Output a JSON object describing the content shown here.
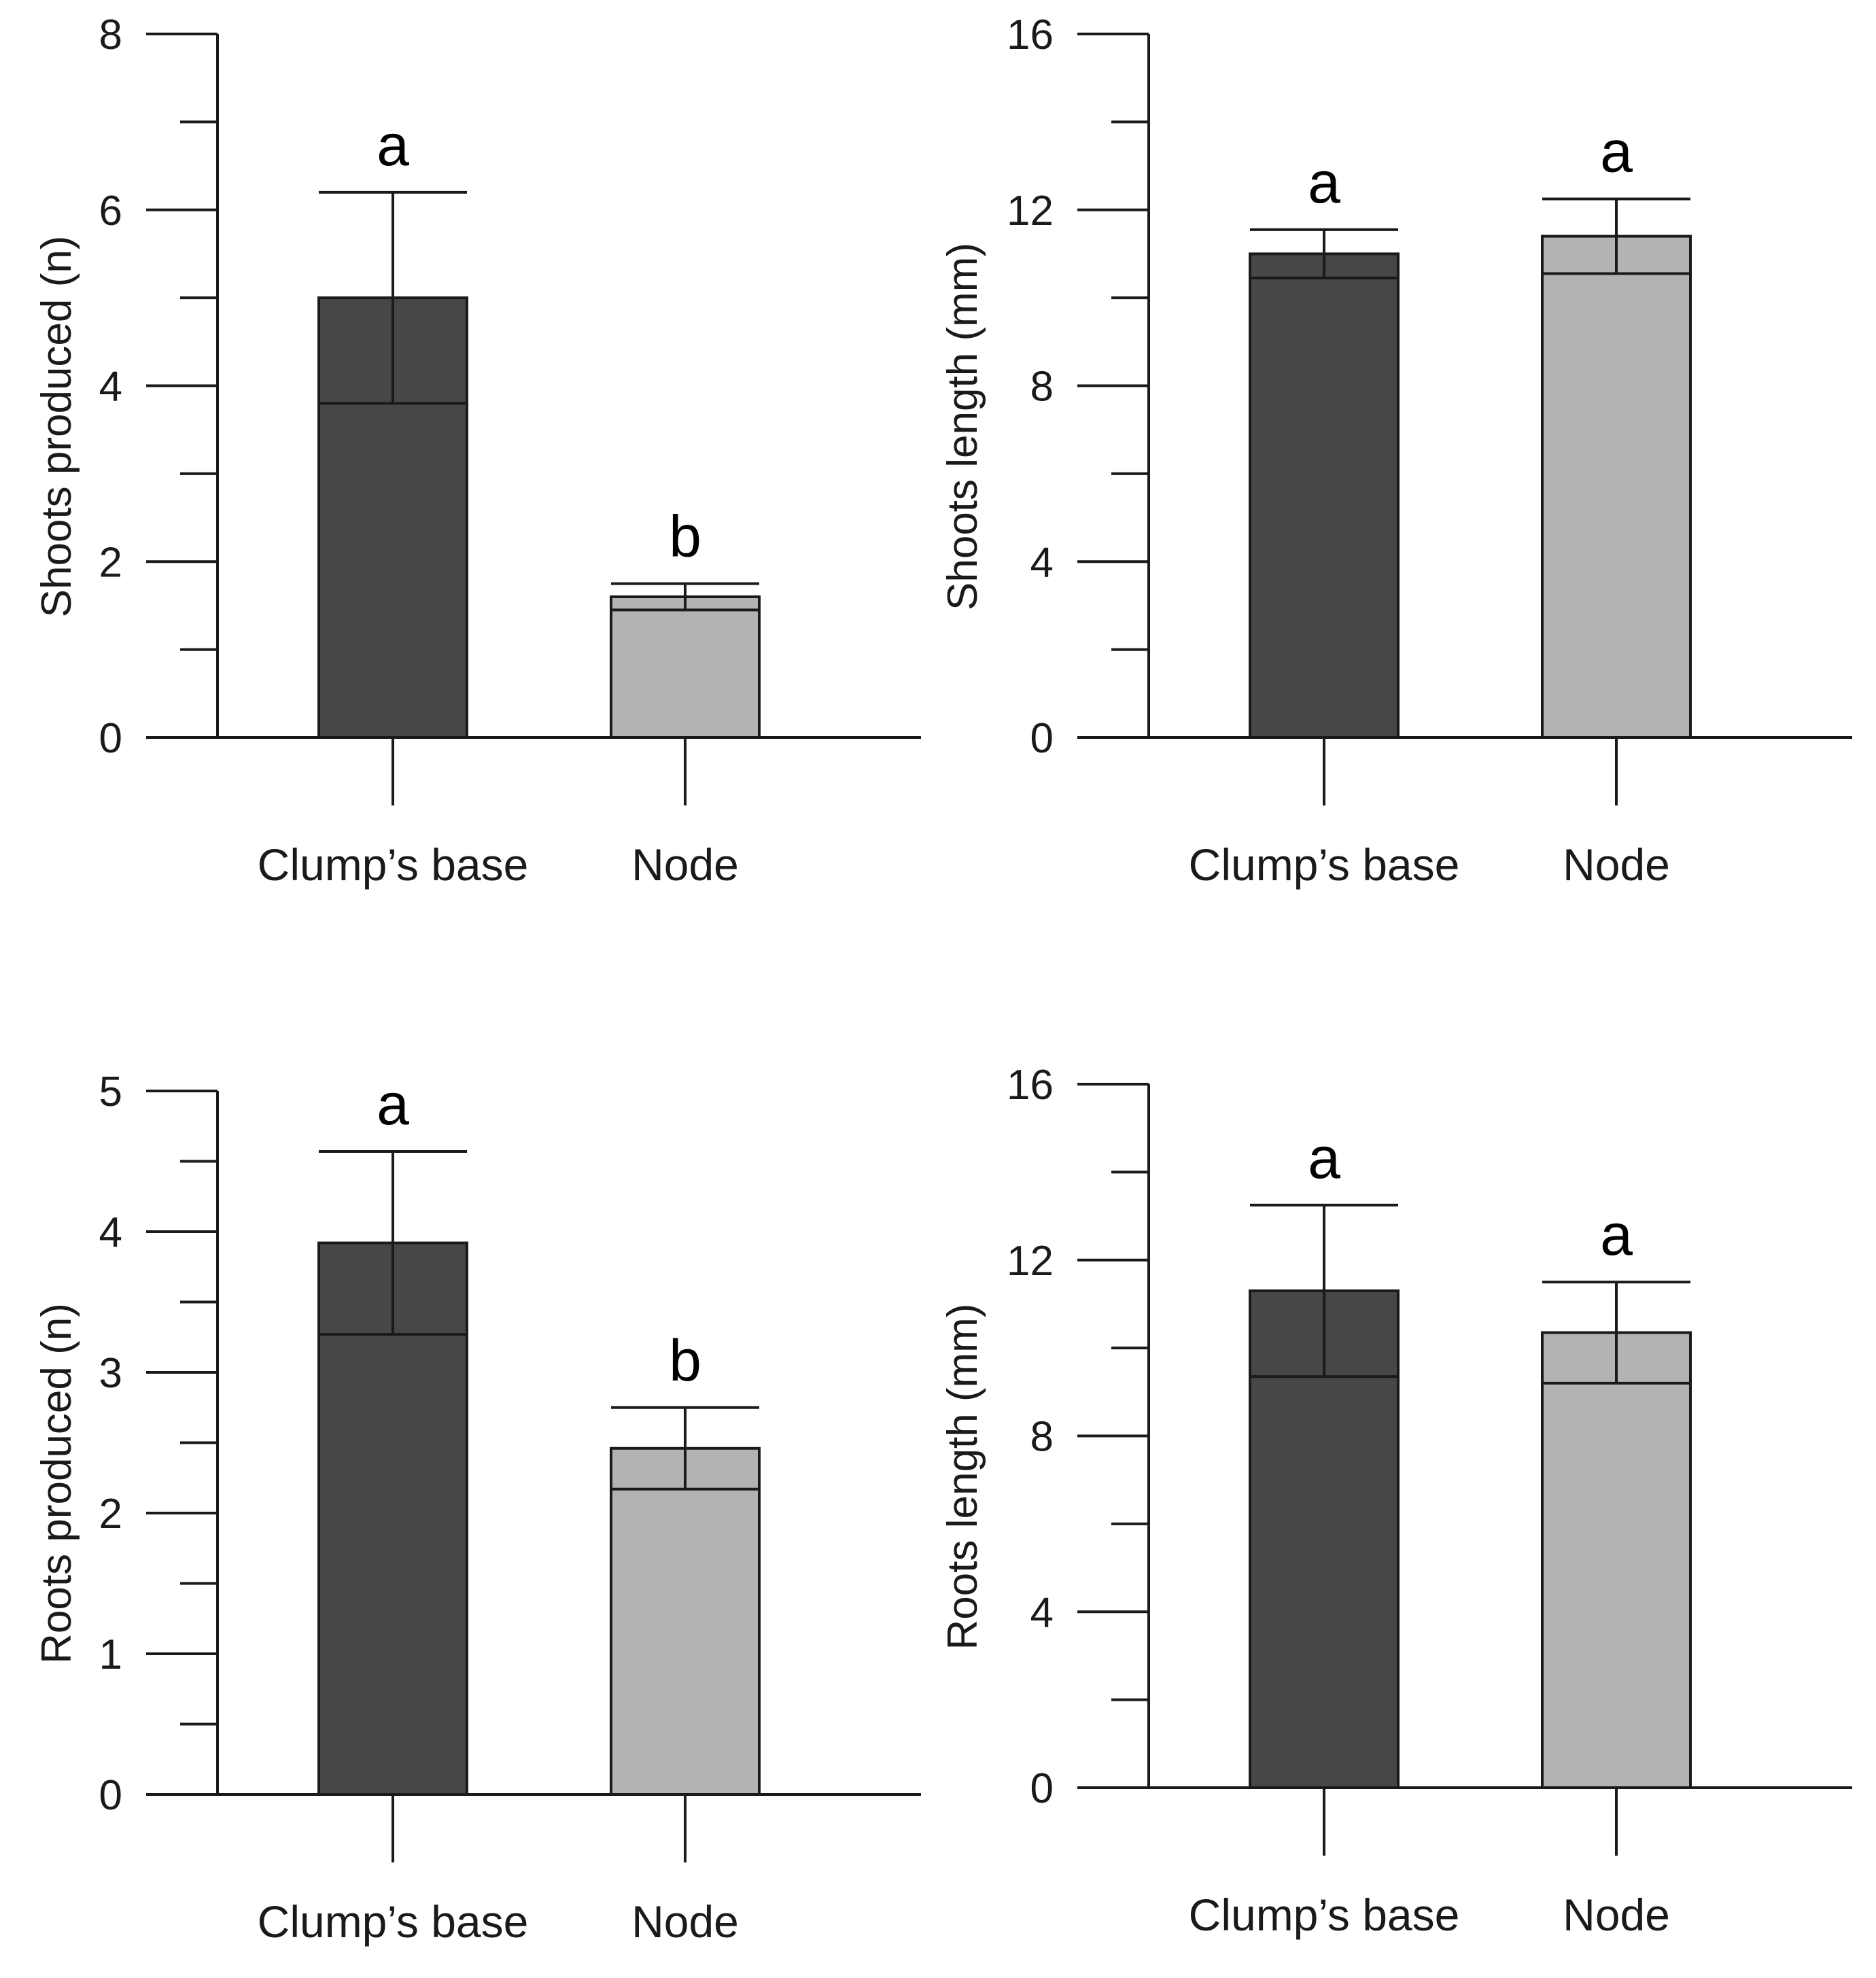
{
  "colors": {
    "clump_base_fill": "#474747",
    "node_fill": "#b3b3b3",
    "axis": "#1a1a1a"
  },
  "chart_data": [
    {
      "type": "bar",
      "panel": "top-left",
      "categories": [
        "Clump’s base",
        "Node"
      ],
      "values": [
        5.0,
        1.6
      ],
      "errors": [
        1.2,
        0.15
      ],
      "significance": [
        "a",
        "b"
      ],
      "xlabel": "",
      "ylabel": "Shoots produced (n)",
      "ylim": [
        0,
        8
      ],
      "yticks": [
        0,
        2,
        4,
        6,
        8
      ],
      "minor_step": 1,
      "grid": false
    },
    {
      "type": "bar",
      "panel": "top-right",
      "categories": [
        "Clump’s base",
        "Node"
      ],
      "values": [
        11.0,
        11.4
      ],
      "errors": [
        0.55,
        0.85
      ],
      "significance": [
        "a",
        "a"
      ],
      "xlabel": "",
      "ylabel": "Shoots length (mm)",
      "ylim": [
        0,
        16
      ],
      "yticks": [
        0,
        4,
        8,
        12,
        16
      ],
      "minor_step": 2,
      "grid": false
    },
    {
      "type": "bar",
      "panel": "bottom-left",
      "categories": [
        "Clump’s base",
        "Node"
      ],
      "values": [
        3.92,
        2.46
      ],
      "errors": [
        0.65,
        0.29
      ],
      "significance": [
        "a",
        "b"
      ],
      "xlabel": "",
      "ylabel": "Roots produced (n)",
      "ylim": [
        0,
        5
      ],
      "yticks": [
        0,
        1,
        2,
        3,
        4,
        5
      ],
      "minor_step": 0.5,
      "grid": false
    },
    {
      "type": "bar",
      "panel": "bottom-right",
      "categories": [
        "Clump’s base",
        "Node"
      ],
      "values": [
        11.3,
        10.35
      ],
      "errors": [
        1.95,
        1.15
      ],
      "significance": [
        "a",
        "a"
      ],
      "xlabel": "",
      "ylabel": "Roots length (mm)",
      "ylim": [
        0,
        16
      ],
      "yticks": [
        0,
        4,
        8,
        12,
        16
      ],
      "minor_step": 2,
      "grid": false
    }
  ]
}
